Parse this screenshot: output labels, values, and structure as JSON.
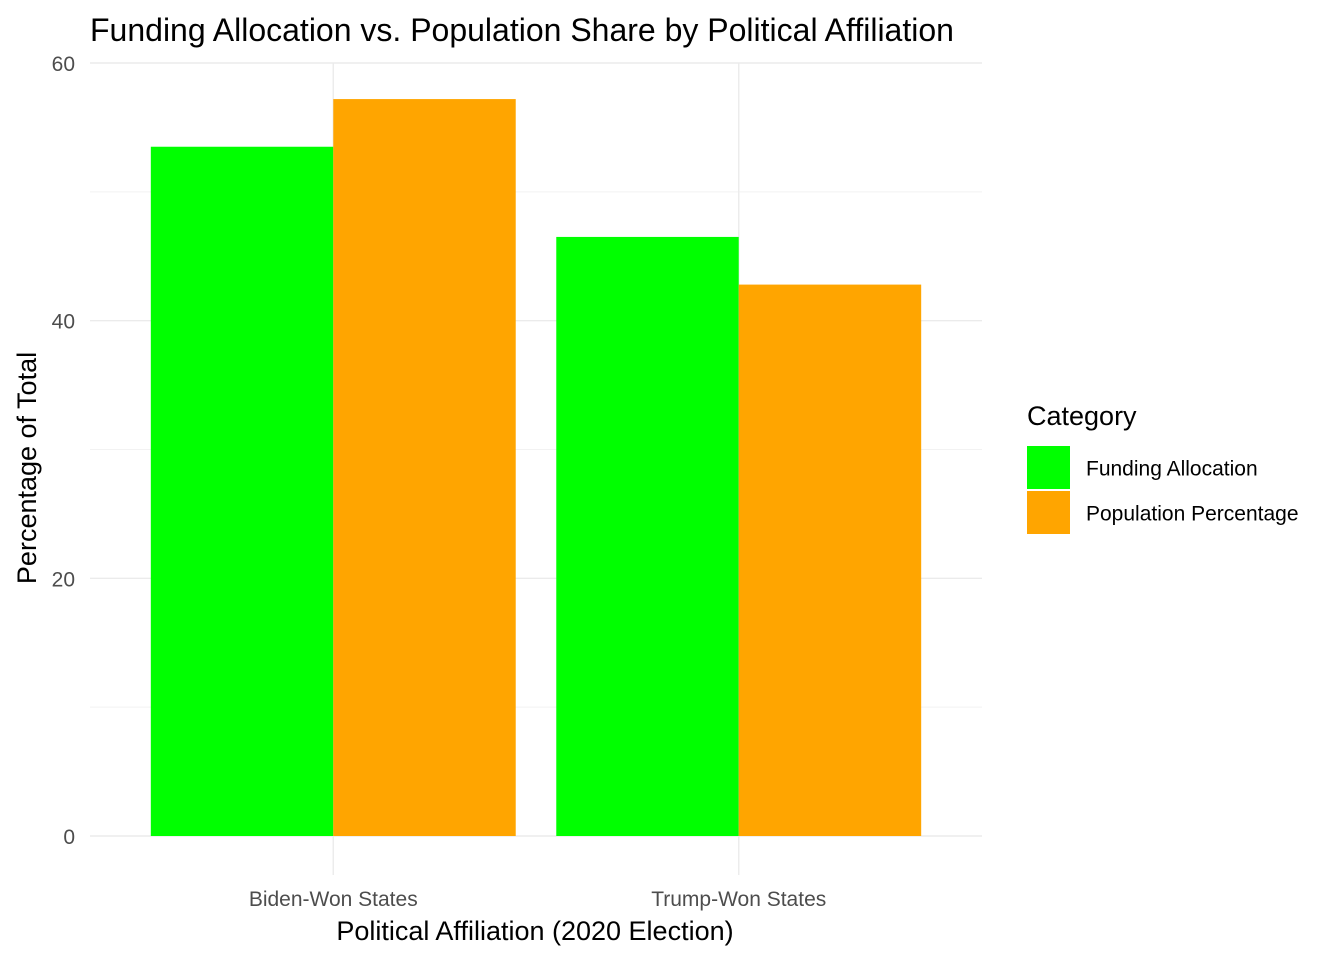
{
  "chart_data": {
    "type": "bar",
    "title": "Funding Allocation vs. Population Share by Political Affiliation",
    "xlabel": "Political Affiliation (2020 Election)",
    "ylabel": "Percentage of Total",
    "categories": [
      "Biden-Won States",
      "Trump-Won States"
    ],
    "series": [
      {
        "name": "Funding Allocation",
        "color": "#00ff00",
        "values": [
          53.5,
          46.5
        ]
      },
      {
        "name": "Population Percentage",
        "color": "#ffa500",
        "values": [
          57.2,
          42.8
        ]
      }
    ],
    "yticks": [
      0,
      20,
      40,
      60
    ],
    "ylim": [
      0,
      60
    ],
    "grid": true,
    "legend": {
      "title": "Category",
      "position": "right"
    }
  }
}
